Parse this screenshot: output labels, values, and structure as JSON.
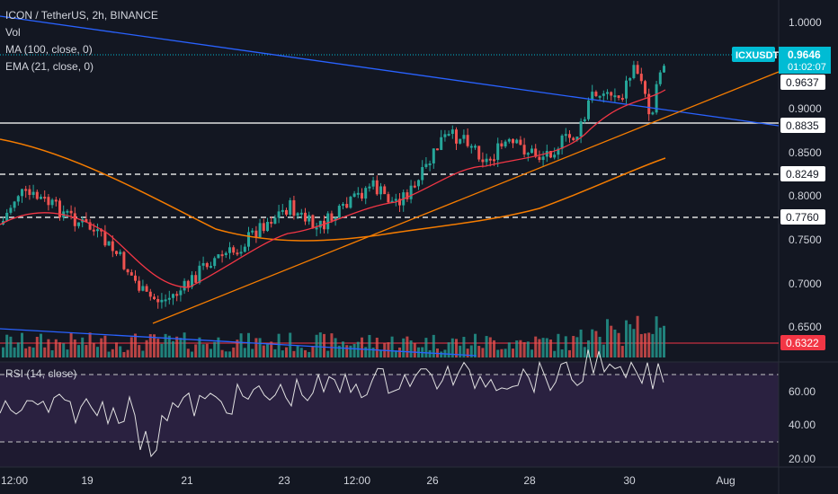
{
  "header": {
    "title": "ICON / TetherUS, 2h, BINANCE",
    "indicators": [
      "Vol",
      "MA (100, close, 0)",
      "EMA (21, close, 0)"
    ]
  },
  "rsi_panel": {
    "label": "RSI (14, close)",
    "ticks": [
      "60.00",
      "40.00",
      "20.00"
    ]
  },
  "price_axis": {
    "ticks": [
      "1.0000",
      "0.9000",
      "0.8500",
      "0.8000",
      "0.7500",
      "0.7000",
      "0.6500"
    ],
    "symbol_badge": "ICXUSDT",
    "current_price": "0.9646",
    "countdown": "01:02:07",
    "markers": [
      {
        "label": "0.9637",
        "style": "ema",
        "fill": "#ffffff",
        "text": "#131722"
      },
      {
        "label": "0.8835",
        "style": "line",
        "fill": "#ffffff",
        "text": "#131722"
      },
      {
        "label": "0.8249",
        "style": "line",
        "fill": "#ffffff",
        "text": "#131722"
      },
      {
        "label": "0.7760",
        "style": "line",
        "fill": "#ffffff",
        "text": "#131722"
      },
      {
        "label": "0.6322",
        "style": "red",
        "fill": "#f23645",
        "text": "#ffffff"
      }
    ]
  },
  "time_axis": {
    "ticks": [
      "12:00",
      "19",
      "21",
      "23",
      "12:00",
      "26",
      "28",
      "30",
      "Aug"
    ]
  },
  "colors": {
    "background": "#131722",
    "up": "#26a69a",
    "down": "#ef5350",
    "accent_cyan": "#00bcd4",
    "trend_blue": "#2962ff",
    "ma_orange": "#f57c00",
    "ema_red": "#f23645",
    "rsi_purple": "#7e57c2"
  }
}
